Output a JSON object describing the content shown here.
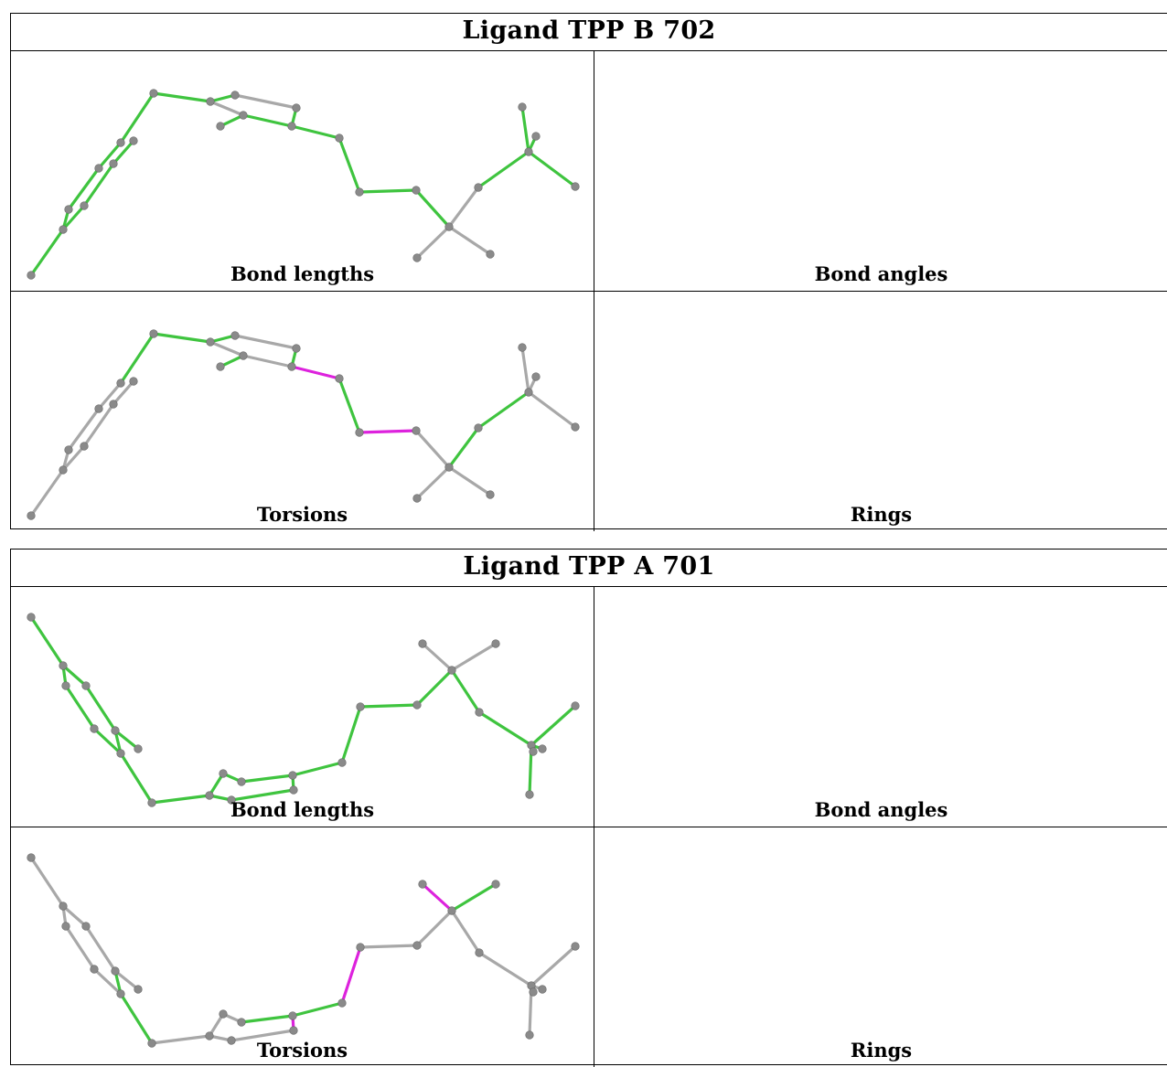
{
  "ligands": [
    {
      "title": "Ligand TPP B 702",
      "panels": [
        {
          "label": "Bond lengths"
        },
        {
          "label": "Bond angles"
        },
        {
          "label": "Torsions"
        },
        {
          "label": "Rings"
        }
      ]
    },
    {
      "title": "Ligand TPP A 701",
      "panels": [
        {
          "label": "Bond lengths"
        },
        {
          "label": "Bond angles"
        },
        {
          "label": "Torsions"
        },
        {
          "label": "Rings"
        }
      ]
    }
  ],
  "colors": {
    "green": "#3fc43f",
    "magenta": "#dd22dd",
    "gray": "#a8a8a8",
    "atom": "#8a8a8a"
  }
}
